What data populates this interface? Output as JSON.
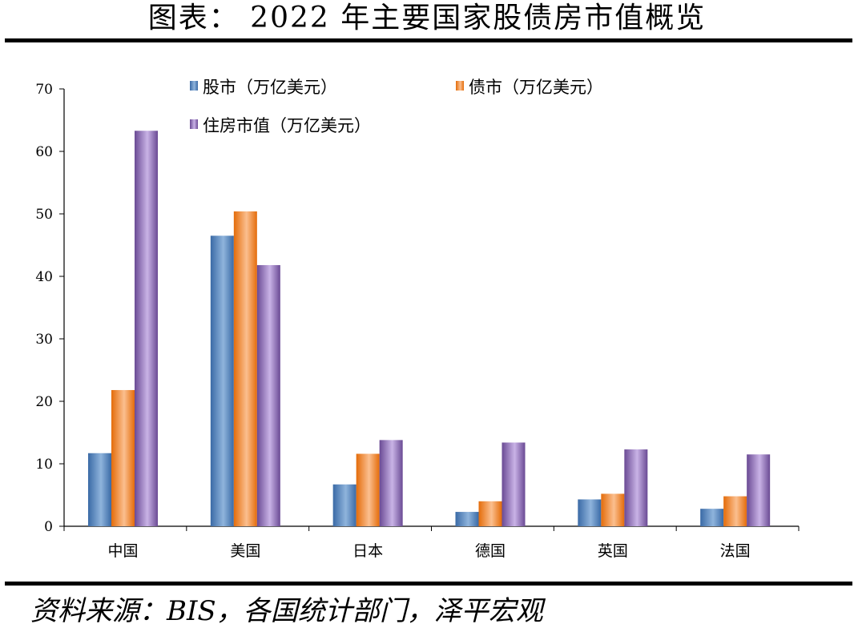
{
  "header": {
    "title": "图表： 2022 年主要国家股债房市值概览"
  },
  "footer": {
    "source": "资料来源：BIS，各国统计部门，泽平宏观"
  },
  "colors": {
    "stock": "#4f81bd",
    "bond": "#f79646",
    "housing": "#8064a2"
  },
  "chart_data": {
    "type": "bar",
    "title": "",
    "xlabel": "",
    "ylabel": "",
    "ylim": [
      0,
      70
    ],
    "yticks": [
      "0",
      "10",
      "20",
      "30",
      "40",
      "50",
      "60",
      "70"
    ],
    "categories": [
      "中国",
      "美国",
      "日本",
      "德国",
      "英国",
      "法国"
    ],
    "series": [
      {
        "name": "股市（万亿美元）",
        "values": [
          11.7,
          46.5,
          6.7,
          2.3,
          4.3,
          2.8
        ]
      },
      {
        "name": "债市（万亿美元）",
        "values": [
          21.8,
          50.4,
          11.6,
          4.0,
          5.2,
          4.8
        ]
      },
      {
        "name": "住房市值（万亿美元）",
        "values": [
          63.3,
          41.8,
          13.8,
          13.4,
          12.3,
          11.5
        ]
      }
    ],
    "legend": "top-left",
    "grid": false
  }
}
